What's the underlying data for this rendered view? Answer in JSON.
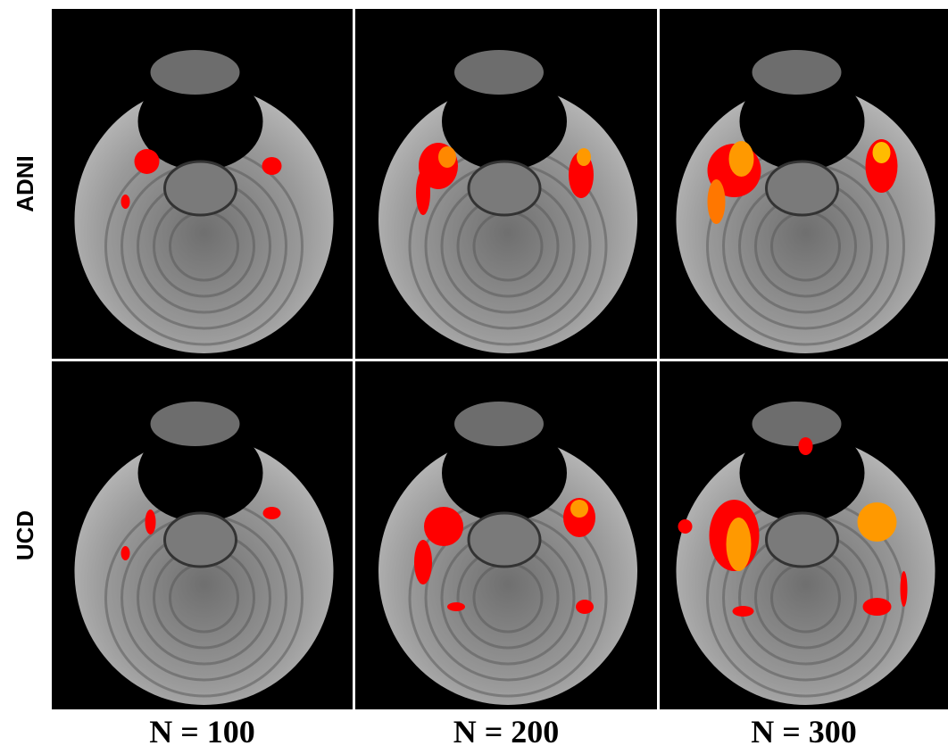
{
  "figure": {
    "row_labels": [
      "ADNI",
      "UCD"
    ],
    "column_labels": [
      "N = 100",
      "N = 200",
      "N = 300"
    ]
  }
}
